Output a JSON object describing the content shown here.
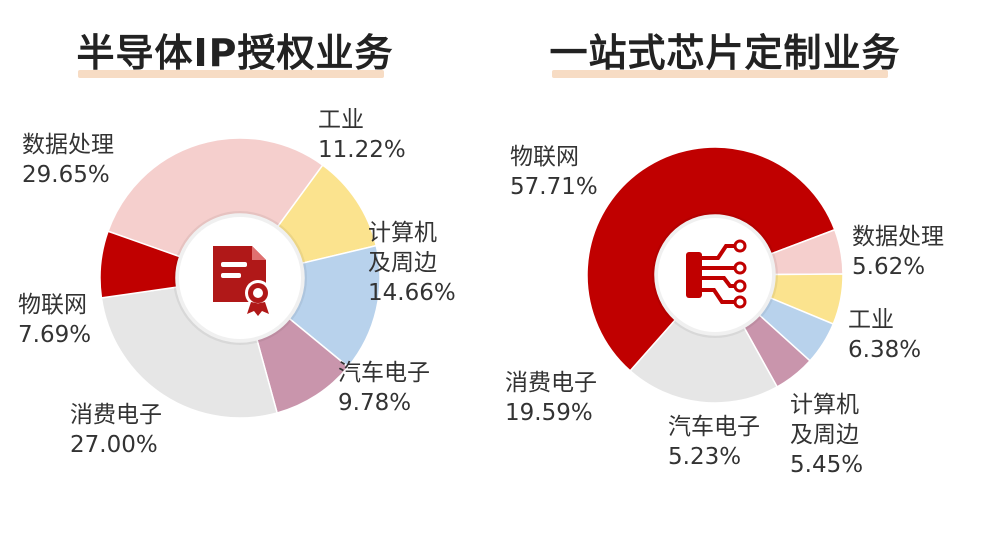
{
  "chart_data": [
    {
      "type": "pie",
      "title": "半导体IP授权业务",
      "center_icon": "certificate-document-icon",
      "slices": [
        {
          "label": "数据处理",
          "value": 29.65,
          "value_label": "29.65%",
          "color": "#f5cfcd"
        },
        {
          "label": "工业",
          "value": 11.22,
          "value_label": "11.22%",
          "color": "#fbe38e"
        },
        {
          "label": "计算机及周边",
          "value": 14.66,
          "value_label": "14.66%",
          "color": "#b8d2ec"
        },
        {
          "label": "汽车电子",
          "value": 9.78,
          "value_label": "9.78%",
          "color": "#c995ac"
        },
        {
          "label": "消费电子",
          "value": 27.0,
          "value_label": "27.00%",
          "color": "#e6e6e6"
        },
        {
          "label": "物联网",
          "value": 7.69,
          "value_label": "7.69%",
          "color": "#c00000"
        }
      ]
    },
    {
      "type": "pie",
      "title": "一站式芯片定制业务",
      "center_icon": "circuit-chip-icon",
      "slices": [
        {
          "label": "物联网",
          "value": 57.71,
          "value_label": "57.71%",
          "color": "#c00000"
        },
        {
          "label": "数据处理",
          "value": 5.62,
          "value_label": "5.62%",
          "color": "#f5cfcd"
        },
        {
          "label": "工业",
          "value": 6.38,
          "value_label": "6.38%",
          "color": "#fbe38e"
        },
        {
          "label": "计算机及周边",
          "value": 5.45,
          "value_label": "5.45%",
          "color": "#b8d2ec"
        },
        {
          "label": "汽车电子",
          "value": 5.23,
          "value_label": "5.23%",
          "color": "#c995ac"
        },
        {
          "label": "消费电子",
          "value": 19.59,
          "value_label": "19.59%",
          "color": "#e6e6e6"
        }
      ]
    }
  ],
  "labels_ip": {
    "data_processing": {
      "line1": "数据处理",
      "line2": "29.65%"
    },
    "industry": {
      "line1": "工业",
      "line2": "11.22%"
    },
    "computer": {
      "line1": "计算机",
      "line2": "及周边",
      "line3": "14.66%"
    },
    "auto": {
      "line1": "汽车电子",
      "line2": "9.78%"
    },
    "consumer": {
      "line1": "消费电子",
      "line2": "27.00%"
    },
    "iot": {
      "line1": "物联网",
      "line2": "7.69%"
    }
  },
  "labels_asic": {
    "iot": {
      "line1": "物联网",
      "line2": "57.71%"
    },
    "data_processing": {
      "line1": "数据处理",
      "line2": "5.62%"
    },
    "industry": {
      "line1": "工业",
      "line2": "6.38%"
    },
    "computer": {
      "line1": "计算机",
      "line2": "及周边",
      "line3": "5.45%"
    },
    "auto": {
      "line1": "汽车电子",
      "line2": "5.23%"
    },
    "consumer": {
      "line1": "消费电子",
      "line2": "19.59%"
    }
  },
  "colors": {
    "accent": "#c00000",
    "title_underline": "#f7dcc4",
    "hole": "#ffffff"
  }
}
